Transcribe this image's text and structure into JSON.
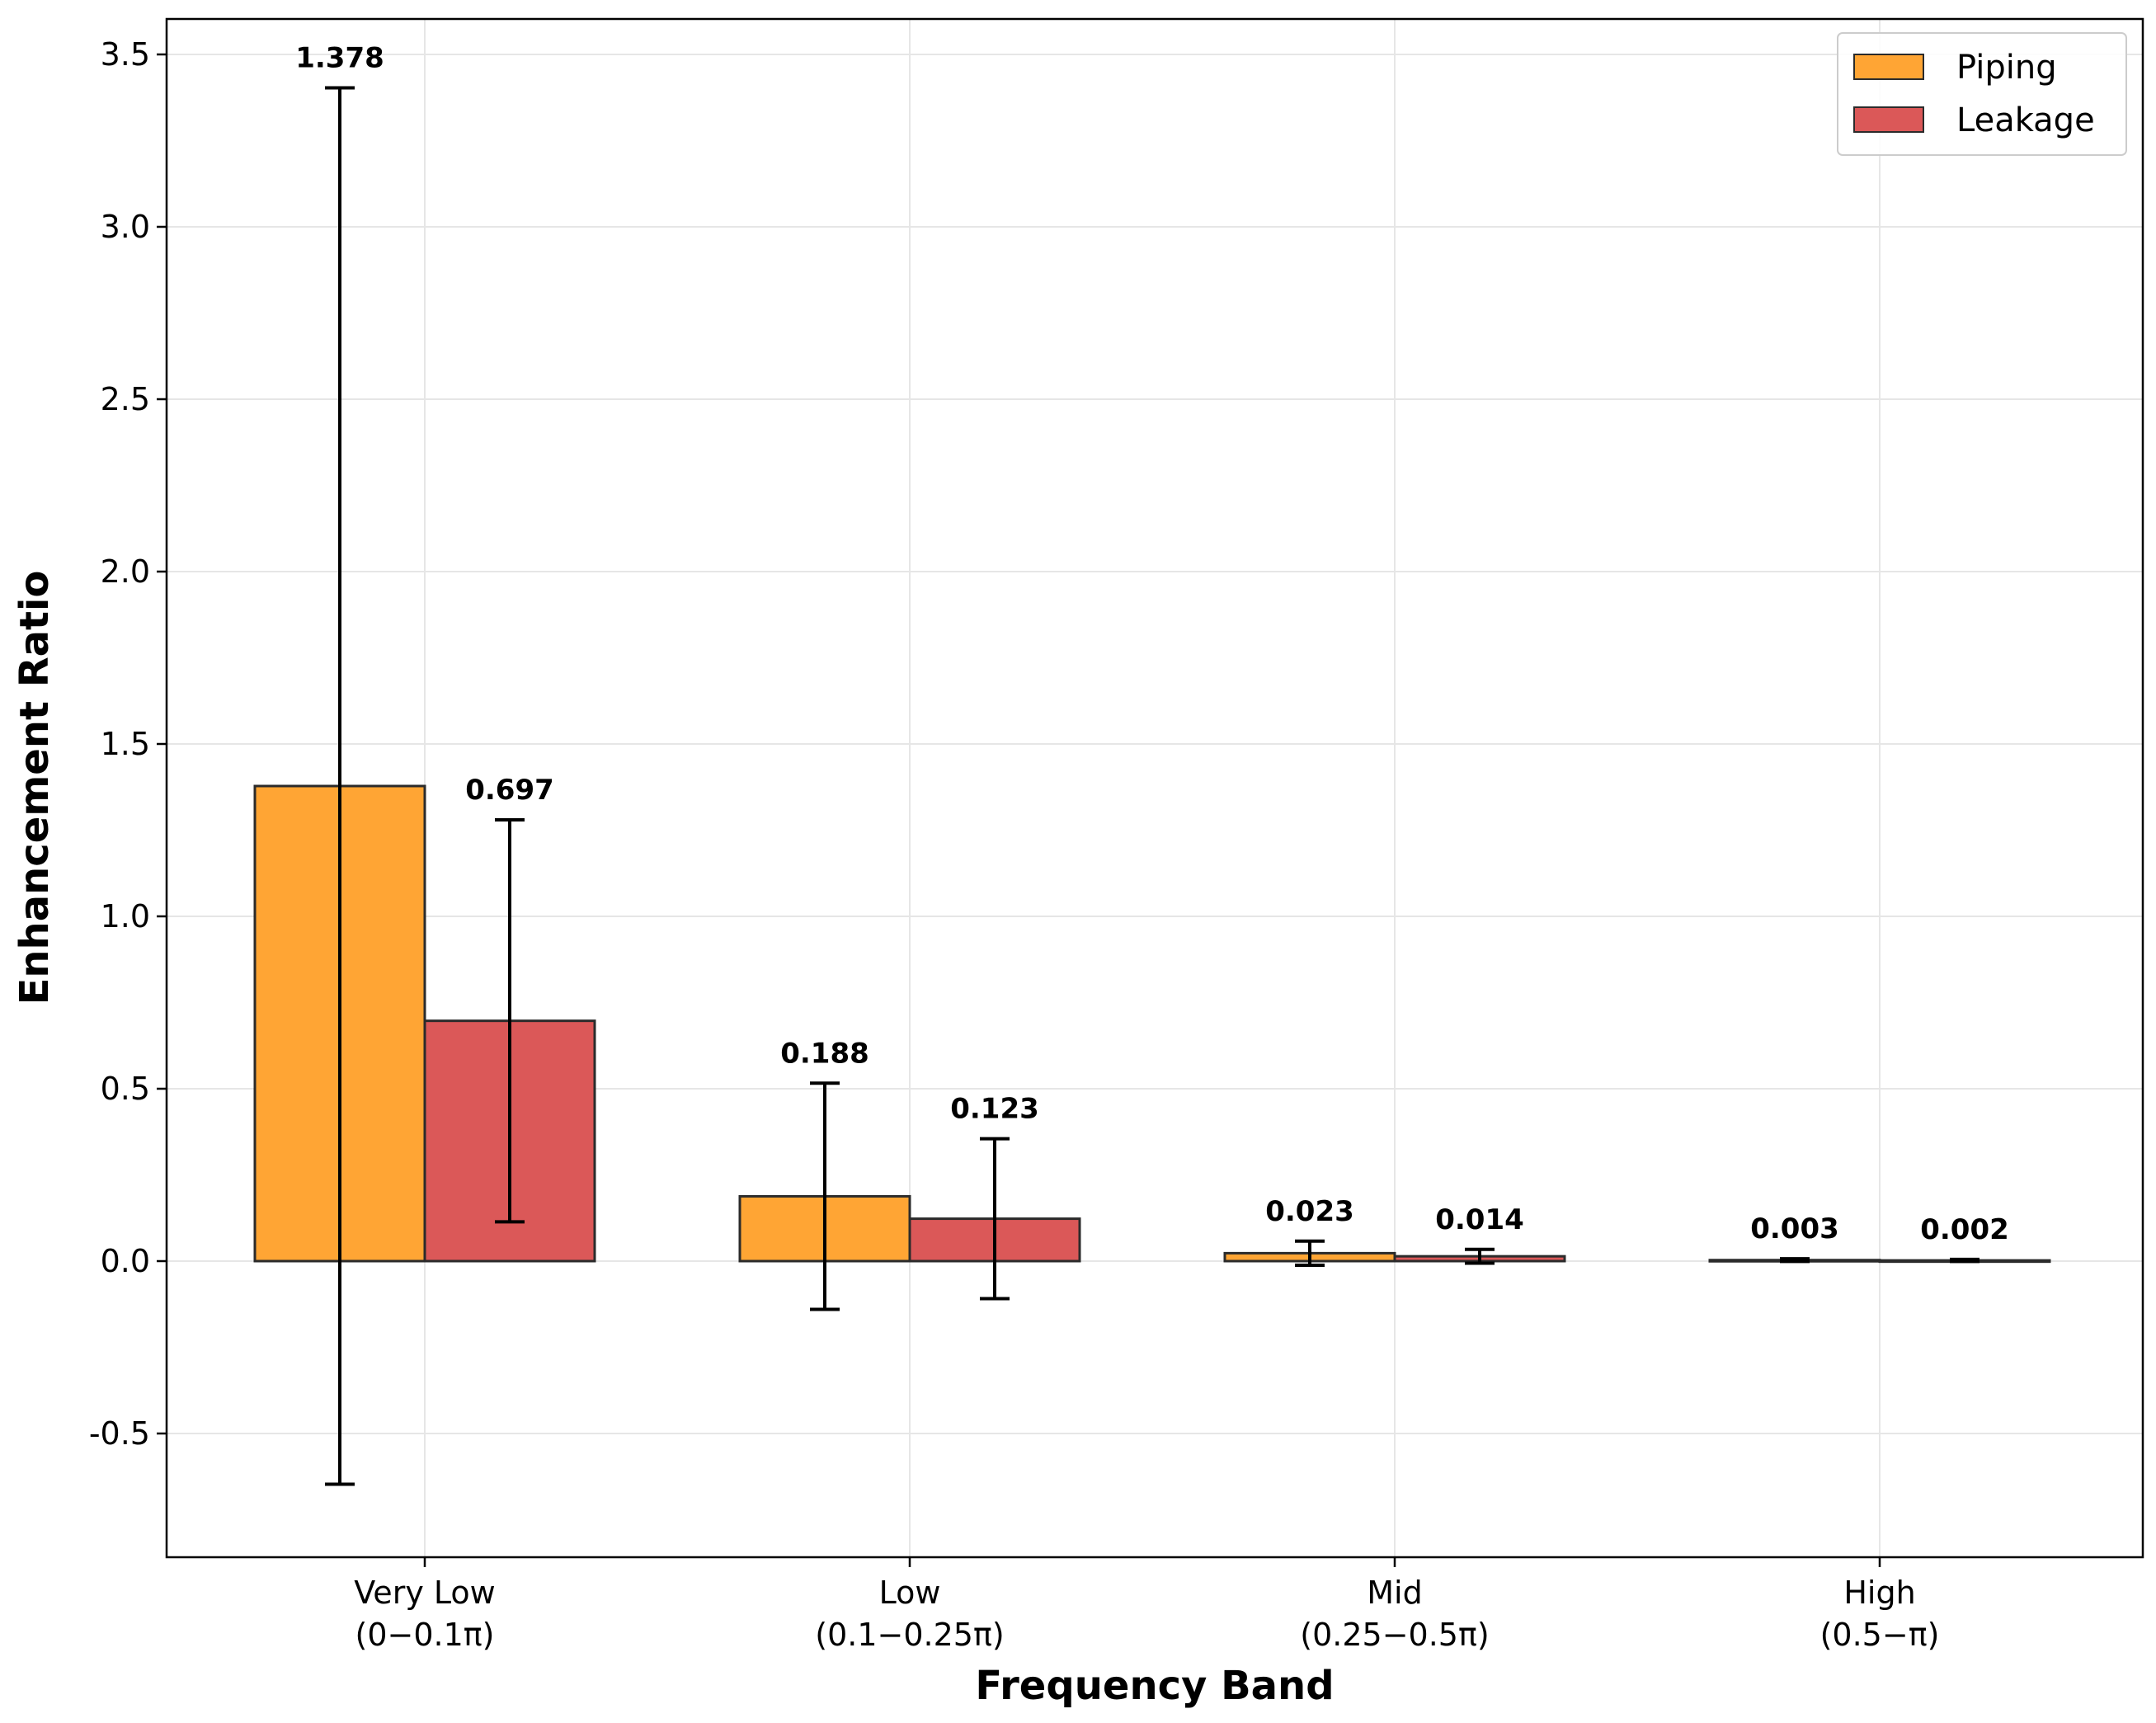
{
  "chart_data": {
    "type": "bar",
    "title": "",
    "xlabel": "Frequency Band",
    "ylabel": "Enhancement Ratio",
    "categories": [
      {
        "line1": "Very Low",
        "line2": "(0−0.1π)"
      },
      {
        "line1": "Low",
        "line2": "(0.1−0.25π)"
      },
      {
        "line1": "Mid",
        "line2": "(0.25−0.5π)"
      },
      {
        "line1": "High",
        "line2": "(0.5−π)"
      }
    ],
    "series": [
      {
        "name": "Piping",
        "color": "#ffa534",
        "values": [
          1.378,
          0.188,
          0.023,
          0.003
        ],
        "labels": [
          "1.378",
          "0.188",
          "0.023",
          "0.003"
        ],
        "errors": [
          2.025,
          0.328,
          0.035,
          0.004
        ]
      },
      {
        "name": "Leakage",
        "color": "#db5858",
        "values": [
          0.697,
          0.123,
          0.014,
          0.002
        ],
        "labels": [
          "0.697",
          "0.123",
          "0.014",
          "0.002"
        ],
        "errors": [
          0.583,
          0.232,
          0.02,
          0.003
        ]
      }
    ],
    "yticks": [
      -0.5,
      0.0,
      0.5,
      1.0,
      1.5,
      2.0,
      2.5,
      3.0,
      3.5
    ],
    "ytick_labels": [
      "-0.5",
      "0.0",
      "0.5",
      "1.0",
      "1.5",
      "2.0",
      "2.5",
      "3.0",
      "3.5"
    ],
    "ylim": [
      -0.85,
      3.6
    ],
    "grid": true,
    "legend_position": "top-right",
    "edge_color": "#2b2b2b"
  }
}
